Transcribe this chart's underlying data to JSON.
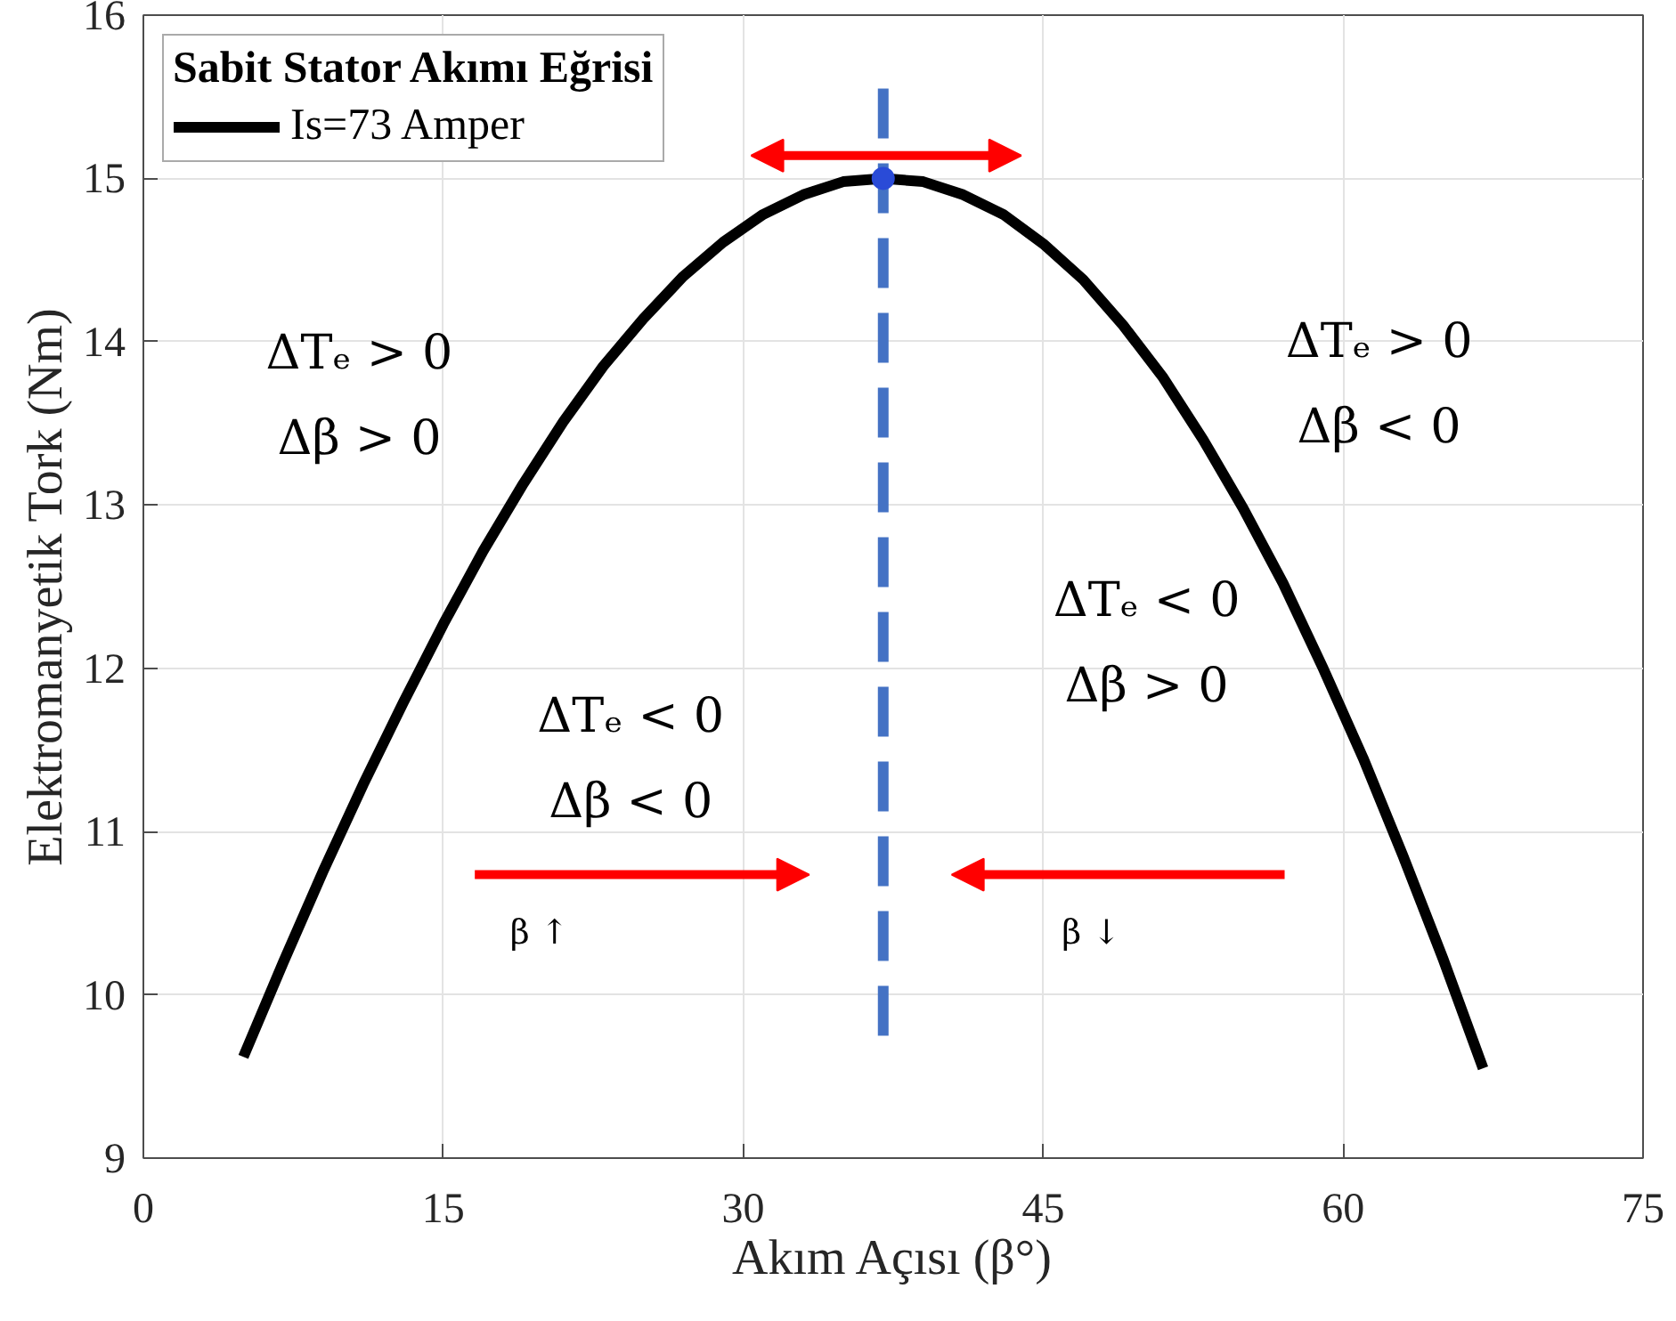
{
  "chart_data": {
    "type": "line",
    "xlabel": "Akım Açısı (β°)",
    "ylabel": "Elektromanyetik Tork (Nm)",
    "legend_title": "Sabit Stator Akımı Eğrisi",
    "xlim": [
      0,
      75
    ],
    "ylim": [
      9,
      16
    ],
    "xticks": [
      0,
      15,
      30,
      45,
      60,
      75
    ],
    "yticks": [
      9,
      10,
      11,
      12,
      13,
      14,
      15,
      16
    ],
    "grid": true,
    "legend": "top left",
    "line_style": "solid",
    "series": [
      {
        "name": "Is=73 Amper",
        "color": "#000000",
        "x": [
          5,
          7,
          9,
          11,
          13,
          15,
          17,
          19,
          21,
          23,
          25,
          27,
          29,
          31,
          33,
          35,
          37,
          39,
          41,
          43,
          45,
          47,
          49,
          51,
          53,
          55,
          57,
          59,
          61,
          63,
          65,
          67
        ],
        "values": [
          9.62,
          10.2,
          10.76,
          11.29,
          11.79,
          12.27,
          12.72,
          13.13,
          13.51,
          13.85,
          14.14,
          14.4,
          14.61,
          14.78,
          14.9,
          14.98,
          15.0,
          14.98,
          14.9,
          14.78,
          14.6,
          14.38,
          14.1,
          13.78,
          13.4,
          12.98,
          12.52,
          12.0,
          11.45,
          10.85,
          10.22,
          9.55
        ]
      },
      {
        "type": "line",
        "color": "#4472c4",
        "line_style": "dashed",
        "x": [
          37,
          37
        ],
        "values": [
          9.75,
          15.55
        ]
      },
      {
        "type": "scatter",
        "color": "#2a4bd7",
        "marker": "circle",
        "x": [
          37
        ],
        "values": [
          15
        ]
      }
    ],
    "annotations": [
      "ΔTₑ > 0\nΔβ > 0",
      "ΔTₑ > 0\nΔβ < 0",
      "ΔTₑ < 0\nΔβ > 0",
      "ΔTₑ < 0\nΔβ < 0",
      "β ↑",
      "β ↓"
    ]
  }
}
